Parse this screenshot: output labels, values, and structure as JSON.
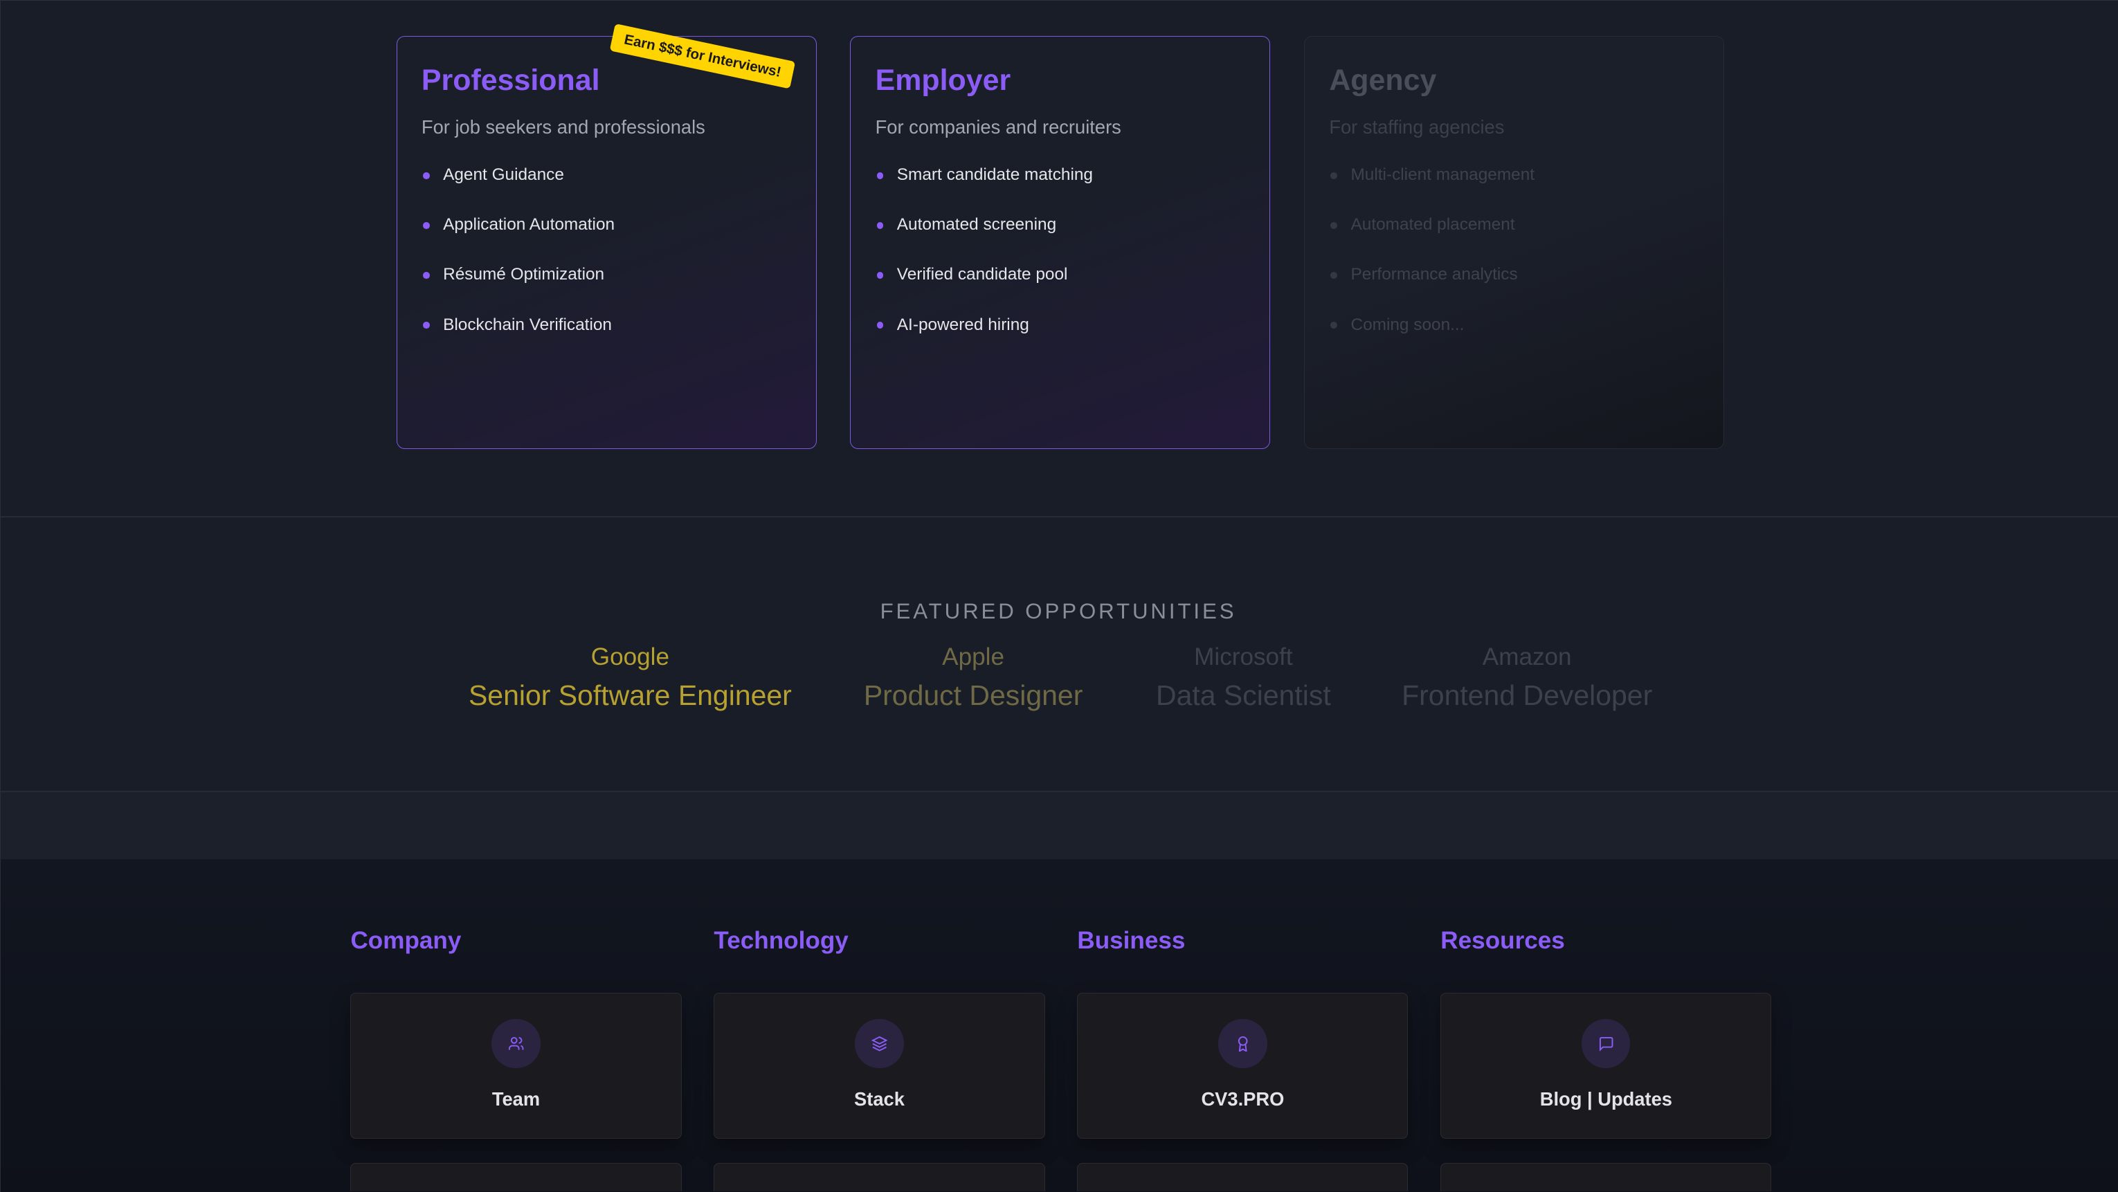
{
  "plans": [
    {
      "title": "Professional",
      "subtitle": "For job seekers and professionals",
      "features": [
        "Agent Guidance",
        "Application Automation",
        "Résumé Optimization",
        "Blockchain Verification"
      ],
      "badge": "Earn $$$ for Interviews!"
    },
    {
      "title": "Employer",
      "subtitle": "For companies and recruiters",
      "features": [
        "Smart candidate matching",
        "Automated screening",
        "Verified candidate pool",
        "AI-powered hiring"
      ]
    },
    {
      "title": "Agency",
      "subtitle": "For staffing agencies",
      "features": [
        "Multi-client management",
        "Automated placement",
        "Performance analytics",
        "Coming soon..."
      ],
      "disabled": true
    }
  ],
  "featured": {
    "title": "FEATURED OPPORTUNITIES",
    "items": [
      {
        "company": "Google",
        "role": "Senior Software Engineer",
        "color": "#b7a131"
      },
      {
        "company": "Apple",
        "role": "Product Designer",
        "color": "#6f6a45"
      },
      {
        "company": "Microsoft",
        "role": "Data Scientist",
        "color": "#3d414c"
      },
      {
        "company": "Amazon",
        "role": "Frontend Developer",
        "color": "#3d414c"
      }
    ]
  },
  "footer": {
    "columns": [
      {
        "heading": "Company",
        "card": "Team",
        "icon": "users-icon"
      },
      {
        "heading": "Technology",
        "card": "Stack",
        "icon": "layers-icon"
      },
      {
        "heading": "Business",
        "card": "CV3.PRO",
        "icon": "award-icon"
      },
      {
        "heading": "Resources",
        "card": "Blog | Updates",
        "icon": "message-square-icon"
      }
    ]
  },
  "colors": {
    "accent": "#8b5cf6",
    "badge": "#ffd400",
    "background": "#191d28"
  }
}
